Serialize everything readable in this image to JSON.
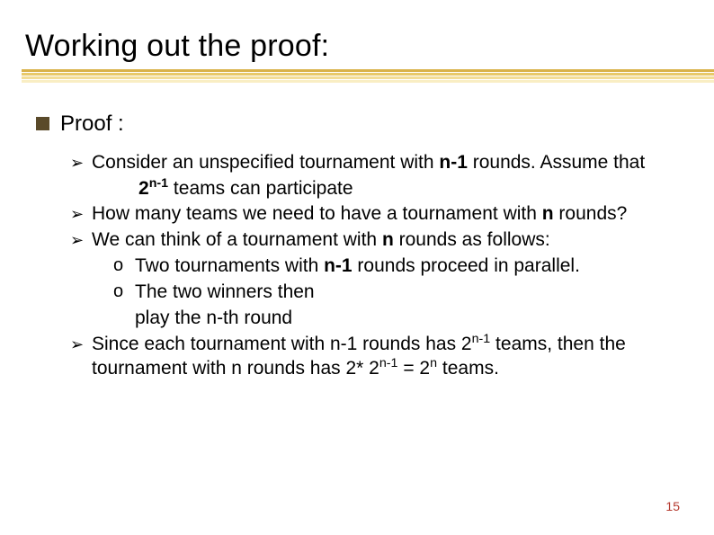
{
  "title": "Working out the proof:",
  "underline": {
    "colors": [
      "#d9b24a",
      "#e8c96a",
      "#f3dd97",
      "#f9eec4"
    ],
    "offsets": [
      0,
      4,
      8,
      12
    ]
  },
  "bullet_colors": {
    "square": "#5a4a2a",
    "arrow": "#000000",
    "circle": "#000000"
  },
  "proof_label": "Proof :",
  "items": {
    "p1a": "Consider an unspecified tournament with ",
    "p1b": "n-1",
    "p1c": " rounds. Assume that",
    "p1d_pre": "2",
    "p1d_sup": "n-1",
    "p1d_post": " teams can participate",
    "p2a": "How many teams we need to have a tournament with ",
    "p2b": "n",
    "p2c": " rounds?",
    "p3a": "We can think of a tournament with ",
    "p3b": "n",
    "p3c": " rounds as follows:",
    "p3_o1a": "Two tournaments with ",
    "p3_o1b": "n-1",
    "p3_o1c": " rounds proceed in parallel.",
    "p3_o2a": "The two winners then",
    "p3_o2b": "play the n-th  round",
    "p4a": "Since each tournament with n-1 rounds has 2",
    "p4a_sup": "n-1",
    "p4a_post": " teams, then the tournament with n rounds has 2* 2",
    "p4b_sup": "n-1",
    "p4b_mid": " = 2",
    "p4c_sup": "n",
    "p4c_post": " teams."
  },
  "page_number": "15",
  "page_number_color": "#b53a2f"
}
